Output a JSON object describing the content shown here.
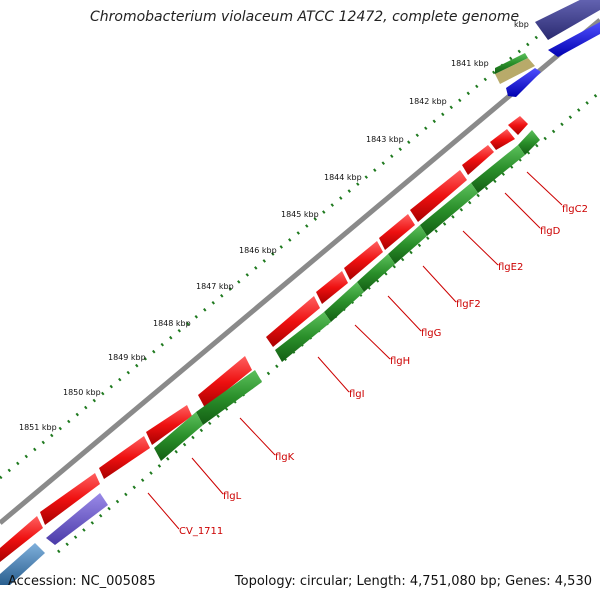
{
  "header": {
    "title": "Chromobacterium violaceum ATCC 12472, complete genome"
  },
  "footer": {
    "accession": "Accession: NC_005085",
    "summary": "Topology: circular; Length: 4,751,080 bp; Genes: 4,530"
  },
  "ruler": {
    "ticks": [
      "kbp",
      "1841 kbp",
      "1842 kbp",
      "1843 kbp",
      "1844 kbp",
      "1845 kbp",
      "1846 kbp",
      "1847 kbp",
      "1848 kbp",
      "1849 kbp",
      "1850 kbp",
      "1851 kbp"
    ]
  },
  "genes": {
    "labels": [
      "flgC2",
      "flgD",
      "flgE2",
      "flgF2",
      "flgG",
      "flgH",
      "flgI",
      "flgK",
      "flgL",
      "CV_1711"
    ]
  },
  "colors": {
    "cds": "#ee1c1c",
    "gene": "#2a8f2a",
    "backbone": "#888888",
    "label": "#cc0000",
    "ruler": "#1f7a1f",
    "other_feature_blue": "#1010e0",
    "other_feature_navy": "#3a3a9a",
    "other_feature_purple": "#6a5acd",
    "other_feature_steel": "#4682b4",
    "other_feature_olive": "#b8aa6a"
  }
}
